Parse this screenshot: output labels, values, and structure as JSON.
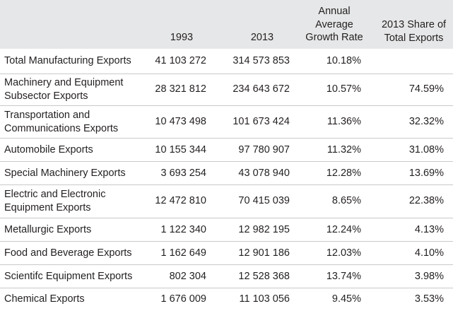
{
  "headers": {
    "y1993": "1993",
    "y2013": "2013",
    "growth": [
      "Annual",
      "Average",
      "Growth Rate"
    ],
    "share": [
      "2013 Share of",
      "Total Exports"
    ]
  },
  "rows": [
    {
      "label": [
        "Total Manufacturing Exports"
      ],
      "v1993": "41 103 272",
      "v2013": "314 573 853",
      "growth": "10.18%",
      "share": ""
    },
    {
      "label": [
        "Machinery and Equipment",
        "Subsector Exports"
      ],
      "v1993": "28 321 812",
      "v2013": "234 643 672",
      "growth": "10.57%",
      "share": "74.59%"
    },
    {
      "label": [
        "Transportation and",
        "Communications Exports"
      ],
      "v1993": "10 473 498",
      "v2013": "101 673 424",
      "growth": "11.36%",
      "share": "32.32%"
    },
    {
      "label": [
        "Automobile Exports"
      ],
      "v1993": "10 155 344",
      "v2013": "97 780 907",
      "growth": "11.32%",
      "share": "31.08%"
    },
    {
      "label": [
        "Special Machinery Exports"
      ],
      "v1993": "3 693 254",
      "v2013": "43 078 940",
      "growth": "12.28%",
      "share": "13.69%"
    },
    {
      "label": [
        "Electric and Electronic",
        "Equipment Exports"
      ],
      "v1993": "12 472 810",
      "v2013": "70 415 039",
      "growth": "8.65%",
      "share": "22.38%"
    },
    {
      "label": [
        "Metallurgic Exports"
      ],
      "v1993": "1 122 340",
      "v2013": "12 982 195",
      "growth": "12.24%",
      "share": "4.13%"
    },
    {
      "label": [
        "Food and Beverage Exports"
      ],
      "v1993": "1 162 649",
      "v2013": "12 901 186",
      "growth": "12.03%",
      "share": "4.10%"
    },
    {
      "label": [
        "Scientifc Equipment Exports"
      ],
      "v1993": "802 304",
      "v2013": "12 528 368",
      "growth": "13.74%",
      "share": "3.98%"
    },
    {
      "label": [
        "Chemical Exports"
      ],
      "v1993": "1 676 009",
      "v2013": "11 103 056",
      "growth": "9.45%",
      "share": "3.53%"
    }
  ]
}
